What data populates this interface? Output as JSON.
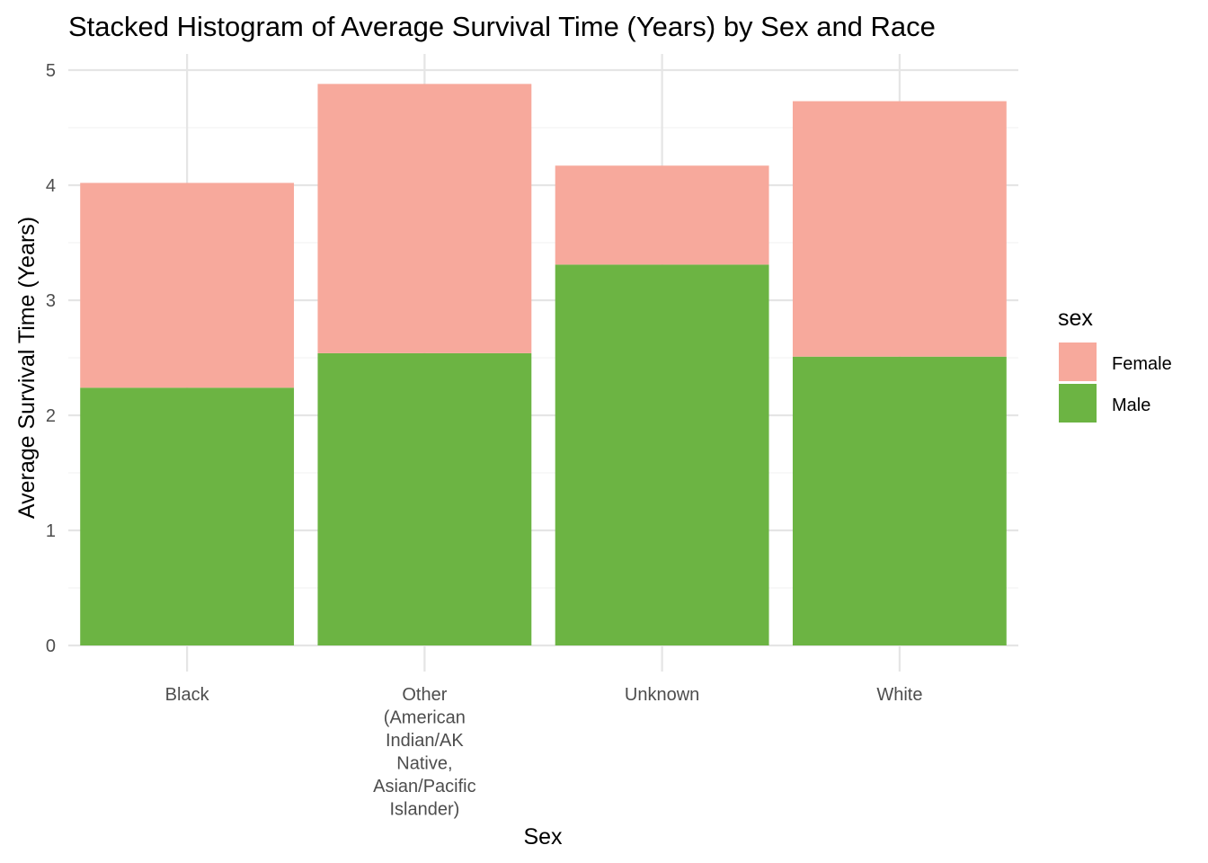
{
  "chart_data": {
    "type": "bar",
    "stacked": true,
    "title": "Stacked Histogram of Average Survival Time (Years) by Sex and Race",
    "xlabel": "Sex",
    "ylabel": "Average Survival Time (Years)",
    "ylim": [
      0,
      5
    ],
    "y_ticks": [
      "0",
      "1",
      "2",
      "3",
      "4",
      "5"
    ],
    "grid": true,
    "categories": [
      [
        "Black"
      ],
      [
        "Other",
        "(American",
        "Indian/AK",
        "Native,",
        "Asian/Pacific",
        "Islander)"
      ],
      [
        "Unknown"
      ],
      [
        "White"
      ]
    ],
    "series": [
      {
        "name": "Male",
        "color": "#6cb443",
        "values": [
          2.24,
          2.54,
          3.31,
          2.51
        ]
      },
      {
        "name": "Female",
        "color": "#f7a99c",
        "values": [
          1.78,
          2.34,
          0.86,
          2.22
        ]
      }
    ],
    "legend": {
      "title": "sex",
      "position": "right",
      "order": [
        "Female",
        "Male"
      ]
    }
  }
}
